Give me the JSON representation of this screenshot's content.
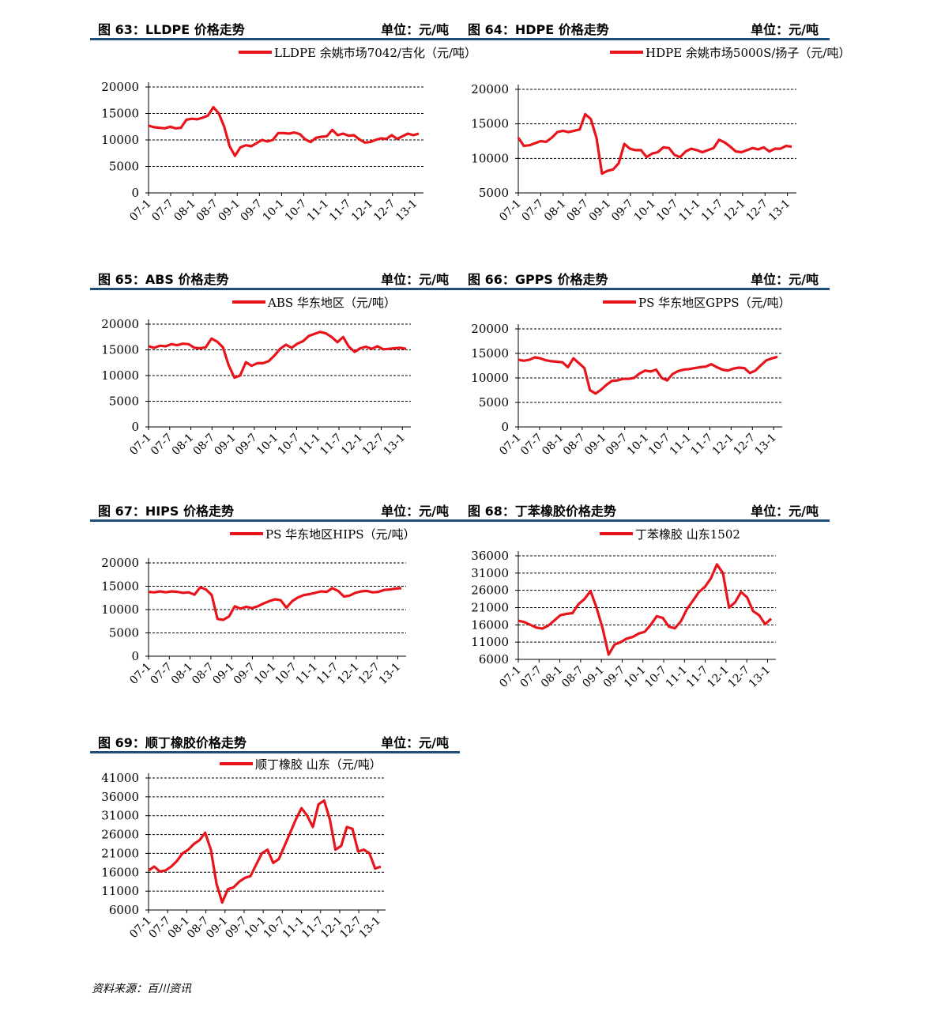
{
  "source": "资料来源：百川资讯",
  "style": {
    "line_color": "#e8141c",
    "header_rule_color": "#1f4e79",
    "grid_color": "#000000"
  },
  "chart_data": [
    {
      "id": "fig63",
      "header": {
        "title": "图 63：LLDPE 价格走势",
        "unit": "单位：元/吨"
      },
      "type": "line",
      "series": [
        {
          "name": "LLDPE 余姚市场7042/吉化（元/吨）",
          "values": [
            12700,
            12400,
            12300,
            12200,
            12500,
            12200,
            12300,
            13800,
            14000,
            13900,
            14200,
            14600,
            16200,
            15000,
            12500,
            8800,
            7000,
            8600,
            9000,
            8800,
            9400,
            10000,
            9700,
            10000,
            11300,
            11300,
            11200,
            11400,
            11100,
            10100,
            9600,
            10400,
            10600,
            10700,
            11900,
            10900,
            11200,
            10800,
            10900,
            10100,
            9500,
            9600,
            10000,
            10300,
            10200,
            10900,
            10200,
            10700,
            11200,
            10900,
            11200
          ]
        }
      ],
      "x_ticks": [
        "07-1",
        "07-7",
        "08-1",
        "08-7",
        "09-1",
        "09-7",
        "10-1",
        "10-7",
        "11-1",
        "11-7",
        "12-1",
        "12-7",
        "13-1"
      ],
      "ylim": [
        0,
        20000
      ],
      "y_ticks": [
        "0",
        "5000",
        "10000",
        "15000",
        "20000"
      ],
      "grid": true,
      "legend": "top"
    },
    {
      "id": "fig64",
      "header": {
        "title": "图 64：HDPE 价格走势",
        "unit": "单位：元/吨"
      },
      "type": "line",
      "series": [
        {
          "name": "HDPE 余姚市场5000S/扬子（元/吨）",
          "values": [
            13000,
            11800,
            11900,
            12200,
            12500,
            12400,
            13000,
            13800,
            14000,
            13800,
            14000,
            14200,
            16400,
            15700,
            13000,
            7800,
            8200,
            8400,
            9300,
            12100,
            11400,
            11200,
            11200,
            10200,
            10700,
            10900,
            11600,
            11500,
            10500,
            10200,
            11000,
            11400,
            11200,
            10900,
            11200,
            11500,
            12700,
            12300,
            11700,
            11000,
            10900,
            11200,
            11500,
            11300,
            11600,
            11000,
            11400,
            11400,
            11800,
            11700
          ]
        }
      ],
      "x_ticks": [
        "07-1",
        "07-7",
        "08-1",
        "08-7",
        "09-1",
        "09-7",
        "10-1",
        "10-7",
        "11-1",
        "11-7",
        "12-1",
        "12-7",
        "13-1"
      ],
      "ylim": [
        5000,
        20000
      ],
      "y_ticks": [
        "5000",
        "10000",
        "15000",
        "20000"
      ],
      "grid": true,
      "legend": "top"
    },
    {
      "id": "fig65",
      "header": {
        "title": "图 65：ABS 价格走势",
        "unit": "单位：元/吨"
      },
      "type": "line",
      "series": [
        {
          "name": "ABS 华东地区（元/吨）",
          "values": [
            15700,
            15400,
            15800,
            15700,
            16100,
            15900,
            16200,
            16100,
            15400,
            15300,
            15500,
            17200,
            16600,
            15500,
            12000,
            9600,
            10000,
            12600,
            11900,
            12400,
            12400,
            12800,
            13900,
            15200,
            16000,
            15400,
            16200,
            16700,
            17700,
            18100,
            18500,
            18200,
            17500,
            16500,
            17500,
            15600,
            14600,
            15300,
            15600,
            15200,
            15700,
            15100,
            15200,
            15300,
            15400,
            15200
          ]
        }
      ],
      "x_ticks": [
        "07-1",
        "07-7",
        "08-1",
        "08-7",
        "09-1",
        "09-7",
        "10-1",
        "10-7",
        "11-1",
        "11-7",
        "12-1",
        "12-7",
        "13-1"
      ],
      "ylim": [
        0,
        20000
      ],
      "y_ticks": [
        "0",
        "5000",
        "10000",
        "15000",
        "20000"
      ],
      "grid": true,
      "legend": "top"
    },
    {
      "id": "fig66",
      "header": {
        "title": "图 66：GPPS 价格走势",
        "unit": "单位：元/吨"
      },
      "type": "line",
      "series": [
        {
          "name": "PS 华东地区GPPS（元/吨）",
          "values": [
            13700,
            13500,
            13700,
            14200,
            14000,
            13600,
            13400,
            13300,
            13200,
            12200,
            14000,
            13000,
            12000,
            7500,
            6800,
            7600,
            8600,
            9400,
            9500,
            9800,
            9800,
            10000,
            10900,
            11500,
            11300,
            11700,
            10000,
            9500,
            10800,
            11400,
            11700,
            11800,
            12000,
            12200,
            12300,
            12800,
            12200,
            11700,
            11500,
            11900,
            12100,
            12000,
            11000,
            11500,
            12600,
            13600,
            14000,
            14300
          ]
        }
      ],
      "x_ticks": [
        "07-1",
        "07-7",
        "08-1",
        "08-7",
        "09-1",
        "09-7",
        "10-1",
        "10-7",
        "11-1",
        "11-7",
        "12-1",
        "12-7",
        "13-1"
      ],
      "ylim": [
        0,
        20000
      ],
      "y_ticks": [
        "0",
        "5000",
        "10000",
        "15000",
        "20000"
      ],
      "grid": true,
      "legend": "top"
    },
    {
      "id": "fig67",
      "header": {
        "title": "图 67：HIPS 价格走势",
        "unit": "单位：元/吨"
      },
      "type": "line",
      "series": [
        {
          "name": "PS 华东地区HIPS（元/吨）",
          "values": [
            13800,
            13700,
            13900,
            13700,
            13900,
            13800,
            13600,
            13700,
            13200,
            14800,
            14300,
            13100,
            8000,
            7800,
            8500,
            10700,
            10200,
            10600,
            10300,
            10700,
            11300,
            11800,
            12200,
            12000,
            10400,
            11800,
            12600,
            13100,
            13300,
            13600,
            13900,
            13800,
            14600,
            14000,
            12800,
            13000,
            13600,
            13900,
            14000,
            13700,
            13800,
            14200,
            14300,
            14500,
            14600
          ]
        }
      ],
      "x_ticks": [
        "07-1",
        "07-7",
        "08-1",
        "08-7",
        "09-1",
        "09-7",
        "10-1",
        "10-7",
        "11-1",
        "11-7",
        "12-1",
        "12-7",
        "13-1"
      ],
      "ylim": [
        0,
        20000
      ],
      "y_ticks": [
        "0",
        "5000",
        "10000",
        "15000",
        "20000"
      ],
      "grid": true,
      "legend": "top"
    },
    {
      "id": "fig68",
      "header": {
        "title": "图 68：丁苯橡胶价格走势",
        "unit": "单位：元/吨"
      },
      "type": "line",
      "series": [
        {
          "name": "丁苯橡胶 山东1502",
          "values": [
            17200,
            16800,
            16000,
            15200,
            14900,
            15800,
            17300,
            18800,
            19200,
            19400,
            22000,
            23500,
            25800,
            21000,
            15000,
            7400,
            10300,
            11000,
            12000,
            12500,
            13500,
            14000,
            16000,
            18500,
            18000,
            15500,
            15000,
            17000,
            20500,
            23000,
            25500,
            27000,
            29500,
            33500,
            31000,
            21000,
            22500,
            25500,
            24000,
            20000,
            18800,
            16200,
            17800
          ]
        }
      ],
      "x_ticks": [
        "07-1",
        "07-7",
        "08-1",
        "08-7",
        "09-1",
        "09-7",
        "10-1",
        "10-7",
        "11-1",
        "11-7",
        "12-1",
        "12-7",
        "13-1"
      ],
      "ylim": [
        6000,
        36000
      ],
      "y_ticks": [
        "6000",
        "11000",
        "16000",
        "21000",
        "26000",
        "31000",
        "36000"
      ],
      "grid": true,
      "legend": "top"
    },
    {
      "id": "fig69",
      "header": {
        "title": "图 69：顺丁橡胶价格走势",
        "unit": "单位：元/吨"
      },
      "type": "line",
      "series": [
        {
          "name": "顺丁橡胶 山东（元/吨）",
          "values": [
            16500,
            17500,
            16200,
            16500,
            17500,
            19000,
            21000,
            22000,
            23500,
            24500,
            26500,
            22000,
            13000,
            8000,
            11500,
            12000,
            13500,
            14500,
            15000,
            18000,
            21000,
            22000,
            18500,
            19500,
            23000,
            26500,
            30000,
            33000,
            31000,
            28000,
            34000,
            35000,
            30000,
            22000,
            23000,
            28000,
            27500,
            21500,
            22000,
            21000,
            17000,
            17500
          ]
        }
      ],
      "x_ticks": [
        "07-1",
        "07-7",
        "08-1",
        "08-7",
        "09-1",
        "09-7",
        "10-1",
        "10-7",
        "11-1",
        "11-7",
        "12-1",
        "12-7",
        "13-1"
      ],
      "ylim": [
        6000,
        41000
      ],
      "y_ticks": [
        "6000",
        "11000",
        "16000",
        "21000",
        "26000",
        "31000",
        "36000",
        "41000"
      ],
      "grid": true,
      "legend": "top"
    }
  ]
}
